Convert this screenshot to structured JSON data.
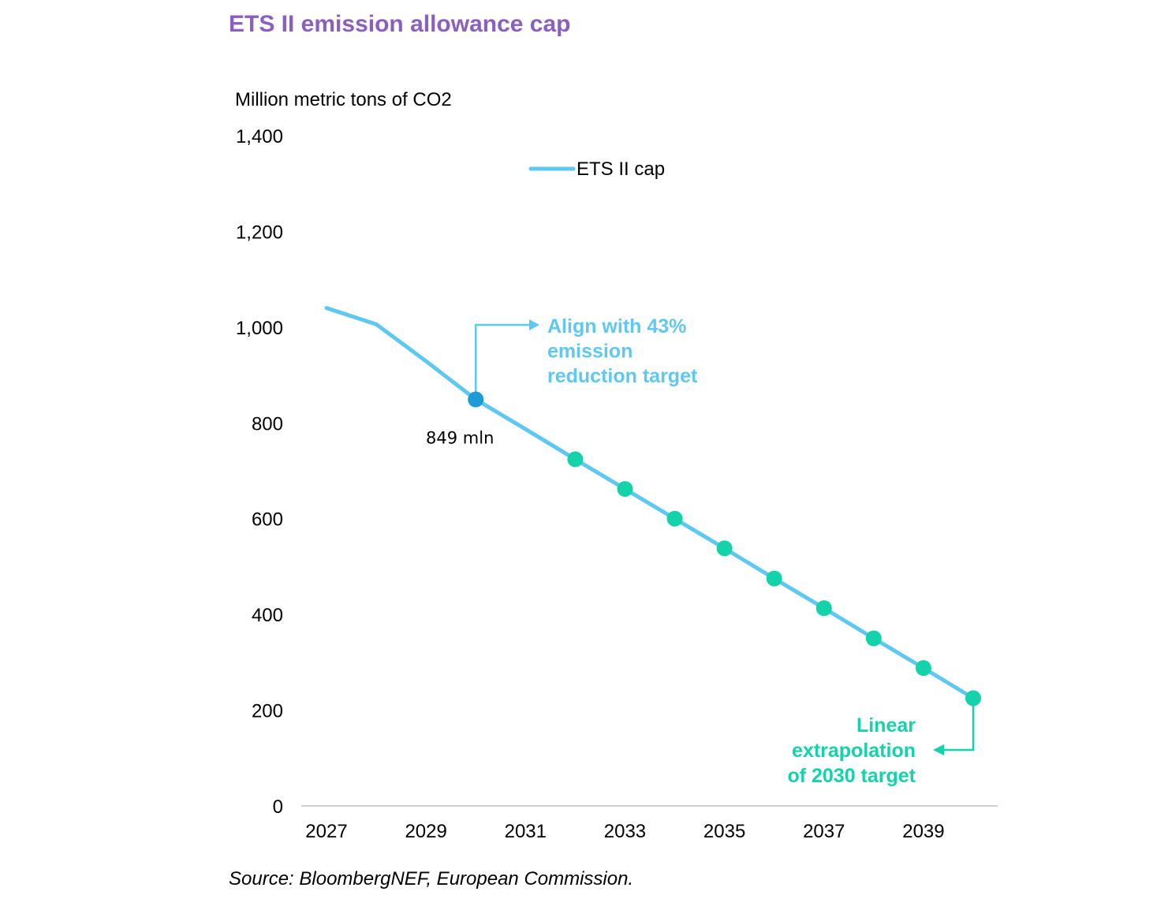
{
  "chart_data": {
    "type": "line",
    "title": "ETS II emission allowance cap",
    "ylabel": "Million metric tons of CO2",
    "xlabel": "",
    "source": "Source: BloombergNEF, European Commission.",
    "ylim": [
      0,
      1400
    ],
    "y_ticks": [
      0,
      200,
      400,
      600,
      800,
      1000,
      1200,
      1400
    ],
    "y_tick_labels": [
      "0",
      "200",
      "400",
      "600",
      "800",
      "1,000",
      "1,200",
      "1,400"
    ],
    "xlim": [
      2027,
      2040
    ],
    "x_ticks": [
      2027,
      2029,
      2031,
      2033,
      2035,
      2037,
      2039
    ],
    "x_tick_labels": [
      "2027",
      "2029",
      "2031",
      "2033",
      "2035",
      "2037",
      "2039"
    ],
    "grid": false,
    "legend": {
      "position": "top-center",
      "entries": [
        "ETS II cap"
      ]
    },
    "series": [
      {
        "name": "ETS II cap",
        "color": "#5ec8f2",
        "x": [
          2027,
          2028,
          2029,
          2030,
          2031,
          2032,
          2033,
          2034,
          2035,
          2036,
          2037,
          2038,
          2039,
          2040
        ],
        "y": [
          1040,
          1006,
          929,
          849,
          787,
          724,
          662,
          600,
          538,
          475,
          413,
          350,
          288,
          225
        ]
      }
    ],
    "highlight_point": {
      "x": 2030,
      "y": 849,
      "label": "849 mln",
      "color": "#1e9ad6"
    },
    "extrapolated_points": {
      "color": "#14d2aa",
      "x": [
        2032,
        2033,
        2034,
        2035,
        2036,
        2037,
        2038,
        2039,
        2040
      ],
      "y": [
        724,
        662,
        600,
        538,
        475,
        413,
        350,
        288,
        225
      ]
    },
    "annotations": [
      {
        "lines": [
          "Align with 43%",
          "emission",
          "reduction target"
        ],
        "color": "#5ec8f2",
        "anchor_x": 2030,
        "anchor_y": 849
      },
      {
        "lines": [
          "Linear",
          "extrapolation",
          "of 2030 target"
        ],
        "color": "#14d2aa",
        "anchor_x": 2040,
        "anchor_y": 225
      }
    ]
  }
}
